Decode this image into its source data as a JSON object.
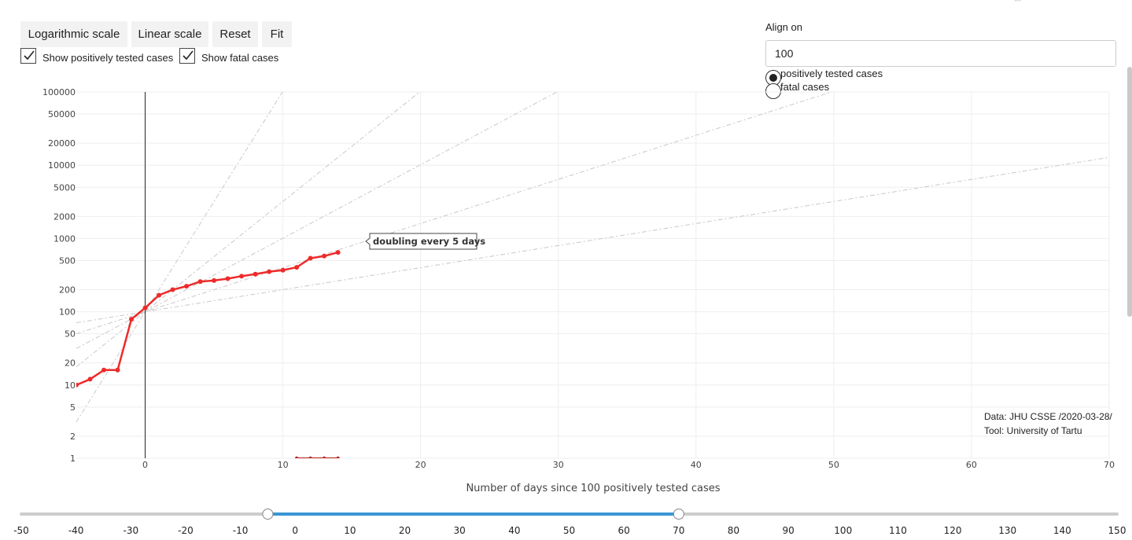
{
  "controls": {
    "buttons": [
      {
        "id": "log",
        "label": "Logarithmic scale"
      },
      {
        "id": "lin",
        "label": "Linear scale"
      },
      {
        "id": "reset",
        "label": "Reset"
      },
      {
        "id": "fit",
        "label": "Fit"
      }
    ],
    "checkboxes": [
      {
        "label": "Show positively tested cases",
        "checked": true
      },
      {
        "label": "Show fatal cases",
        "checked": true
      }
    ],
    "align": {
      "label": "Align on",
      "value": "100",
      "options": [
        {
          "label": "positively tested cases",
          "selected": true
        },
        {
          "label": "fatal cases",
          "selected": false
        }
      ]
    }
  },
  "source": {
    "line1": "Data: JHU CSSE /2020-03-28/",
    "line2": "Tool: University of Tartu"
  },
  "chart_data": {
    "type": "line",
    "scale": "log",
    "xlabel": "Number of days since 100 positively tested cases",
    "ylabel": "",
    "xlim": [
      -5,
      70
    ],
    "ylim": [
      1,
      100000
    ],
    "x_ticks": [
      0,
      10,
      20,
      30,
      40,
      50,
      60,
      70
    ],
    "y_ticks": [
      1,
      2,
      5,
      10,
      20,
      50,
      100,
      200,
      500,
      1000,
      2000,
      5000,
      10000,
      20000,
      50000,
      100000
    ],
    "y_tick_labels": [
      "1",
      "2",
      "5",
      "10",
      "20",
      "50",
      "100",
      "200",
      "500",
      "1000",
      "2000",
      "5000",
      "10000",
      "20000",
      "50000",
      "100000"
    ],
    "grid": true,
    "accent_color": "#ee2a2a",
    "series": [
      {
        "kind": "positive",
        "color": "#ee2a2a",
        "x": [
          -5,
          -4,
          -3,
          -2,
          -1,
          0,
          1,
          2,
          3,
          4,
          5,
          6,
          7,
          8,
          9,
          10,
          11,
          12,
          13,
          14
        ],
        "y": [
          10,
          12,
          16,
          16,
          79,
          113,
          168,
          200,
          223,
          258,
          267,
          283,
          306,
          326,
          352,
          369,
          404,
          538,
          575,
          646
        ]
      },
      {
        "kind": "fatal",
        "color": "#b52020",
        "x": [
          11,
          12,
          13,
          14
        ],
        "y": [
          1,
          1,
          1,
          1
        ]
      }
    ],
    "reference_lines": [
      {
        "doubling_days": 1
      },
      {
        "doubling_days": 2
      },
      {
        "doubling_days": 3
      },
      {
        "doubling_days": 5
      },
      {
        "doubling_days": 10
      }
    ],
    "annotation": {
      "label": "doubling every 5 days"
    }
  },
  "slider": {
    "ticks": [
      "-50",
      "-40",
      "-30",
      "-20",
      "-10",
      "0",
      "10",
      "20",
      "30",
      "40",
      "50",
      "60",
      "70",
      "80",
      "90",
      "100",
      "110",
      "120",
      "130",
      "140",
      "150"
    ],
    "range": [
      -5,
      70
    ],
    "track_color": "#cccccc",
    "active_color": "#3a95d4"
  }
}
